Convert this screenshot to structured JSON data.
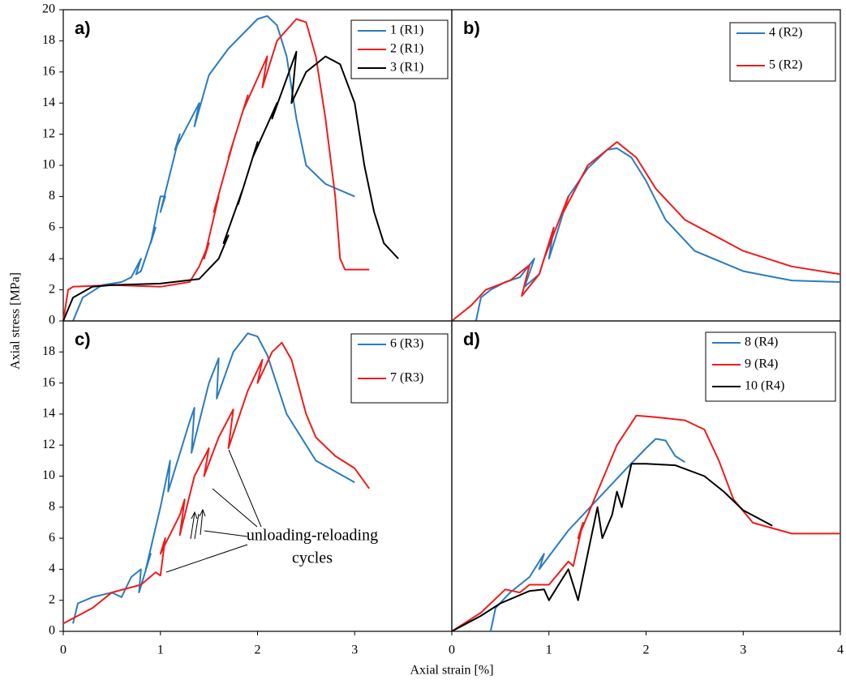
{
  "y_label": "Axial stress [MPa]",
  "x_label": "Axial strain [%]",
  "chart_data": [
    {
      "type": "line",
      "panel_label": "a)",
      "xlim": [
        0,
        4
      ],
      "ylim": [
        0,
        20
      ],
      "yticks": [
        0,
        2,
        4,
        6,
        8,
        10,
        12,
        14,
        16,
        18,
        20
      ],
      "legend": "upper right",
      "series": [
        {
          "name": "1 (R1)",
          "color": "#2b7bc0",
          "x": [
            0.1,
            0.2,
            0.4,
            0.6,
            0.7,
            0.8,
            0.75,
            0.8,
            0.95,
            0.9,
            1.0,
            1.05,
            1.0,
            1.2,
            1.15,
            1.4,
            1.35,
            1.5,
            1.7,
            2.0,
            2.1,
            2.2,
            2.3,
            2.4,
            2.5,
            2.7,
            3.0
          ],
          "values": [
            0,
            1.5,
            2.3,
            2.5,
            2.8,
            4,
            3,
            3.2,
            6,
            5,
            8,
            8,
            7,
            12,
            11,
            14,
            12.5,
            15.8,
            17.5,
            19.4,
            19.6,
            19,
            17,
            13,
            10,
            8.8,
            8.0
          ]
        },
        {
          "name": "2 (R1)",
          "color": "#ee1c1c",
          "x": [
            0,
            0.05,
            0.1,
            0.5,
            1.0,
            1.3,
            1.4,
            1.5,
            1.45,
            1.6,
            1.55,
            1.75,
            1.7,
            1.9,
            1.85,
            2.1,
            2.05,
            2.2,
            2.4,
            2.5,
            2.6,
            2.7,
            2.8,
            2.85,
            2.9,
            3.15
          ],
          "values": [
            0,
            2,
            2.2,
            2.3,
            2.2,
            2.5,
            3.5,
            5,
            4,
            8,
            7,
            11.5,
            10.5,
            14.5,
            13.5,
            17,
            15,
            18,
            19.4,
            19.2,
            17,
            13,
            8,
            4,
            3.3,
            3.3
          ]
        },
        {
          "name": "3 (R1)",
          "color": "#000000",
          "x": [
            0,
            0.1,
            0.3,
            0.5,
            1.0,
            1.4,
            1.6,
            1.7,
            1.65,
            1.85,
            1.8,
            2.0,
            1.95,
            2.2,
            2.15,
            2.4,
            2.35,
            2.5,
            2.7,
            2.85,
            3.0,
            3.1,
            3.2,
            3.3,
            3.45
          ],
          "values": [
            0,
            1.5,
            2.2,
            2.3,
            2.4,
            2.7,
            4,
            5.5,
            5,
            8.5,
            7.5,
            11.5,
            10.5,
            14,
            13,
            17.3,
            14,
            16,
            17,
            16.5,
            14,
            10,
            7,
            5,
            4
          ]
        }
      ]
    },
    {
      "type": "line",
      "panel_label": "b)",
      "xlim": [
        0,
        4
      ],
      "ylim": [
        0,
        20
      ],
      "legend": "upper right",
      "series": [
        {
          "name": "4 (R2)",
          "color": "#2b7bc0",
          "x": [
            0.25,
            0.3,
            0.4,
            0.55,
            0.7,
            0.85,
            0.75,
            0.9,
            1.0,
            1.05,
            1.0,
            1.2,
            1.4,
            1.6,
            1.7,
            1.85,
            2.0,
            2.2,
            2.5,
            3.0,
            3.5,
            4.0
          ],
          "values": [
            0,
            1.5,
            2,
            2.5,
            2.8,
            4,
            2.2,
            3,
            5,
            6,
            4,
            8,
            9.8,
            11,
            11.1,
            10.5,
            9,
            6.5,
            4.5,
            3.2,
            2.6,
            2.5
          ]
        },
        {
          "name": "5 (R2)",
          "color": "#ee1c1c",
          "x": [
            0,
            0.2,
            0.35,
            0.6,
            0.8,
            0.72,
            0.9,
            1.05,
            0.95,
            1.2,
            1.15,
            1.4,
            1.7,
            1.9,
            2.1,
            2.4,
            3.0,
            3.5,
            4.0
          ],
          "values": [
            0,
            1,
            2,
            2.6,
            3.6,
            1.6,
            3,
            6,
            4,
            8,
            7,
            10,
            11.5,
            10.5,
            8.5,
            6.5,
            4.5,
            3.5,
            3.0
          ]
        }
      ]
    },
    {
      "type": "line",
      "panel_label": "c)",
      "xlim": [
        0,
        4
      ],
      "ylim": [
        0,
        20
      ],
      "xticks": [
        0,
        1,
        2,
        3
      ],
      "yticks": [
        0,
        2,
        4,
        6,
        8,
        10,
        12,
        14,
        16,
        18
      ],
      "legend": "upper right",
      "annotation": [
        "unloading-reloading",
        "cycles"
      ],
      "series": [
        {
          "name": "6 (R3)",
          "color": "#2b7bc0",
          "x": [
            0.1,
            0.15,
            0.3,
            0.5,
            0.6,
            0.7,
            0.8,
            0.78,
            0.9,
            0.85,
            1.0,
            1.1,
            1.08,
            1.3,
            1.35,
            1.32,
            1.5,
            1.6,
            1.58,
            1.75,
            1.9,
            2.0,
            2.1,
            2.3,
            2.5,
            2.6,
            3.0
          ],
          "values": [
            0.5,
            1.8,
            2.2,
            2.5,
            2.2,
            3.5,
            4,
            2.5,
            5,
            4,
            8,
            11,
            9,
            13.5,
            14.4,
            11.5,
            16,
            17.6,
            15,
            18,
            19.2,
            19,
            17.8,
            14,
            12,
            11,
            9.6
          ]
        },
        {
          "name": "7 (R3)",
          "color": "#ee1c1c",
          "x": [
            0,
            0.3,
            0.5,
            0.8,
            0.95,
            1.0,
            1.05,
            1.0,
            1.2,
            1.25,
            1.2,
            1.35,
            1.5,
            1.45,
            1.6,
            1.75,
            1.7,
            1.9,
            2.05,
            2.0,
            2.15,
            2.25,
            2.35,
            2.5,
            2.6,
            2.8,
            3.0,
            3.15
          ],
          "values": [
            0.5,
            1.5,
            2.5,
            3,
            3.8,
            3.6,
            6,
            5,
            7.5,
            8.5,
            6.2,
            10,
            11.8,
            10,
            12.5,
            14.3,
            11.8,
            15.5,
            17.5,
            16,
            18,
            18.6,
            17.5,
            14,
            12.5,
            11.3,
            10.5,
            9.2
          ]
        }
      ]
    },
    {
      "type": "line",
      "panel_label": "d)",
      "xlim": [
        0,
        4
      ],
      "ylim": [
        0,
        20
      ],
      "xticks": [
        0,
        1,
        2,
        3,
        4
      ],
      "legend": "upper right",
      "series": [
        {
          "name": "8 (R4)",
          "color": "#2b7bc0",
          "x": [
            0.4,
            0.45,
            0.6,
            0.8,
            0.95,
            0.9,
            1.2,
            1.5,
            1.8,
            2.0,
            2.1,
            2.2,
            2.3,
            2.4
          ],
          "values": [
            0,
            1.5,
            2.5,
            3.5,
            5,
            4,
            6.5,
            8.5,
            10.5,
            11.8,
            12.4,
            12.3,
            11.3,
            10.9
          ]
        },
        {
          "name": "9 (R4)",
          "color": "#ee1c1c",
          "x": [
            0,
            0.3,
            0.55,
            0.7,
            0.8,
            1.0,
            1.2,
            1.25,
            1.35,
            1.3,
            1.5,
            1.7,
            1.9,
            2.1,
            2.4,
            2.6,
            2.75,
            2.9,
            3.1,
            3.5,
            4.0
          ],
          "values": [
            0,
            1.2,
            2.7,
            2.5,
            3,
            3,
            4.5,
            4.2,
            7,
            6,
            9,
            12,
            13.9,
            13.8,
            13.6,
            13,
            11,
            8.5,
            7,
            6.3,
            6.3
          ]
        },
        {
          "name": "10 (R4)",
          "color": "#000000",
          "x": [
            0,
            0.3,
            0.5,
            0.8,
            0.95,
            1.0,
            1.1,
            1.2,
            1.3,
            1.4,
            1.5,
            1.55,
            1.65,
            1.7,
            1.75,
            1.85,
            2.0,
            2.3,
            2.6,
            2.8,
            3.0,
            3.3
          ],
          "values": [
            0,
            1,
            1.8,
            2.6,
            2.7,
            2,
            3,
            4,
            2,
            5,
            8,
            6,
            7.5,
            9,
            8,
            10.8,
            10.8,
            10.7,
            10,
            9,
            7.8,
            6.8
          ]
        }
      ]
    }
  ]
}
